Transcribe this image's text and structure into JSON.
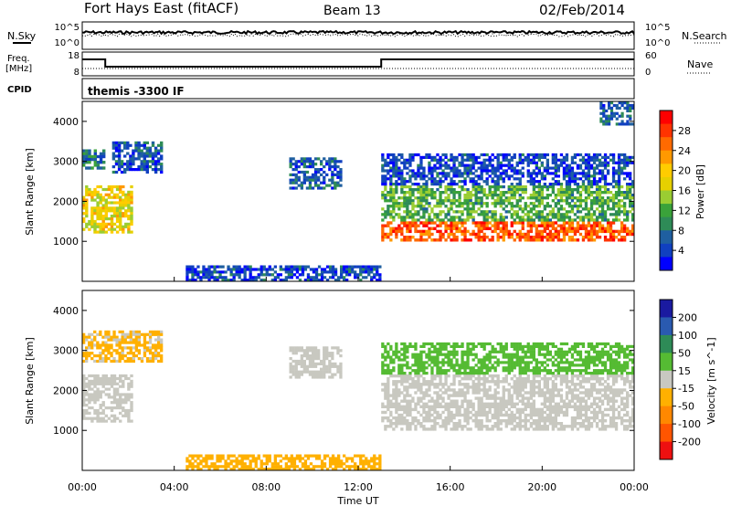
{
  "header": {
    "station": "Fort Hays East (fitACF)",
    "beam": "Beam 13",
    "date": "02/Feb/2014"
  },
  "panels": {
    "noise": {
      "left_label": "N.Sky",
      "right_label": "N.Search",
      "left_ticks": [
        "10^5",
        "10^0"
      ],
      "right_ticks": [
        "10^5",
        "10^0"
      ]
    },
    "freq": {
      "left_label_1": "Freq.",
      "left_label_2": "[MHz]",
      "right_label": "Nave",
      "left_ticks": [
        "18",
        "8"
      ],
      "right_ticks": [
        "60",
        "0"
      ],
      "freq_series": [
        {
          "t": 0.0,
          "value": 15.5
        },
        {
          "t": 1.0,
          "value": 15.5
        },
        {
          "t": 1.0,
          "value": 11.5
        },
        {
          "t": 13.0,
          "value": 11.5
        },
        {
          "t": 13.0,
          "value": 15.5
        },
        {
          "t": 24.0,
          "value": 15.5
        }
      ],
      "nave_value": 15
    },
    "cpid": {
      "label": "CPID",
      "text": "themis -3300 IF"
    }
  },
  "chart_data": [
    {
      "type": "heatmap",
      "name": "power",
      "ylabel": "Slant Range [km]",
      "yticks": [
        "4000",
        "3000",
        "2000",
        "1000"
      ],
      "ylim": [
        0,
        4500
      ],
      "xlim": [
        0,
        24
      ],
      "xlabel": "",
      "colorbar": {
        "label": "Power [dB]",
        "ticks": [
          "28",
          "24",
          "20",
          "16",
          "12",
          "8",
          "4"
        ],
        "colors": [
          "#ff0000",
          "#ff3300",
          "#ff6a00",
          "#ff9900",
          "#ffcc00",
          "#e6d000",
          "#9acd32",
          "#3aa23a",
          "#2e8b57",
          "#1f5fa0",
          "#1040c0",
          "#0000ff"
        ]
      },
      "regions": [
        {
          "t0": 0.0,
          "t1": 2.2,
          "r0": 1200,
          "r1": 2400,
          "value": 18
        },
        {
          "t0": 0.0,
          "t1": 1.0,
          "r0": 2800,
          "r1": 3300,
          "value": 8
        },
        {
          "t0": 1.3,
          "t1": 3.5,
          "r0": 2700,
          "r1": 3500,
          "value": 6
        },
        {
          "t0": 9.0,
          "t1": 11.3,
          "r0": 2300,
          "r1": 3100,
          "value": 6
        },
        {
          "t0": 13.0,
          "t1": 24.0,
          "r0": 1000,
          "r1": 1500,
          "value": 26
        },
        {
          "t0": 13.0,
          "t1": 24.0,
          "r0": 1500,
          "r1": 2400,
          "value": 12
        },
        {
          "t0": 13.0,
          "t1": 24.0,
          "r0": 2400,
          "r1": 3200,
          "value": 5
        },
        {
          "t0": 22.5,
          "t1": 24.0,
          "r0": 3900,
          "r1": 4500,
          "value": 7
        },
        {
          "t0": 4.5,
          "t1": 13.0,
          "r0": 0,
          "r1": 400,
          "value": 5
        }
      ]
    },
    {
      "type": "heatmap",
      "name": "velocity",
      "ylabel": "Slant Range [km]",
      "yticks": [
        "4000",
        "3000",
        "2000",
        "1000"
      ],
      "ylim": [
        0,
        4500
      ],
      "xlim": [
        0,
        24
      ],
      "xlabel": "Time UT",
      "xticks": [
        "00:00",
        "04:00",
        "08:00",
        "12:00",
        "16:00",
        "20:00",
        "00:00"
      ],
      "colorbar": {
        "label": "Velocity [m s^-1]",
        "ticks": [
          "200",
          "100",
          "50",
          "15",
          "-15",
          "-50",
          "-100",
          "-200"
        ],
        "colors": [
          "#1a1aa0",
          "#2a5ab0",
          "#2e8b57",
          "#55bb33",
          "#c8c8c0",
          "#ffb000",
          "#ff8800",
          "#ff5500",
          "#ee1010"
        ]
      },
      "regions": [
        {
          "t0": 0.0,
          "t1": 2.2,
          "r0": 1200,
          "r1": 2400,
          "value": 0
        },
        {
          "t0": 0.0,
          "t1": 3.5,
          "r0": 2700,
          "r1": 3500,
          "value": -30
        },
        {
          "t0": 9.0,
          "t1": 11.3,
          "r0": 2300,
          "r1": 3100,
          "value": 0
        },
        {
          "t0": 13.0,
          "t1": 24.0,
          "r0": 1000,
          "r1": 2400,
          "value": 0
        },
        {
          "t0": 13.0,
          "t1": 24.0,
          "r0": 2400,
          "r1": 3200,
          "value": 40
        },
        {
          "t0": 4.5,
          "t1": 13.0,
          "r0": 0,
          "r1": 400,
          "value": -50
        }
      ]
    }
  ],
  "colors": {
    "background": "#ffffff",
    "axis": "#000000"
  }
}
